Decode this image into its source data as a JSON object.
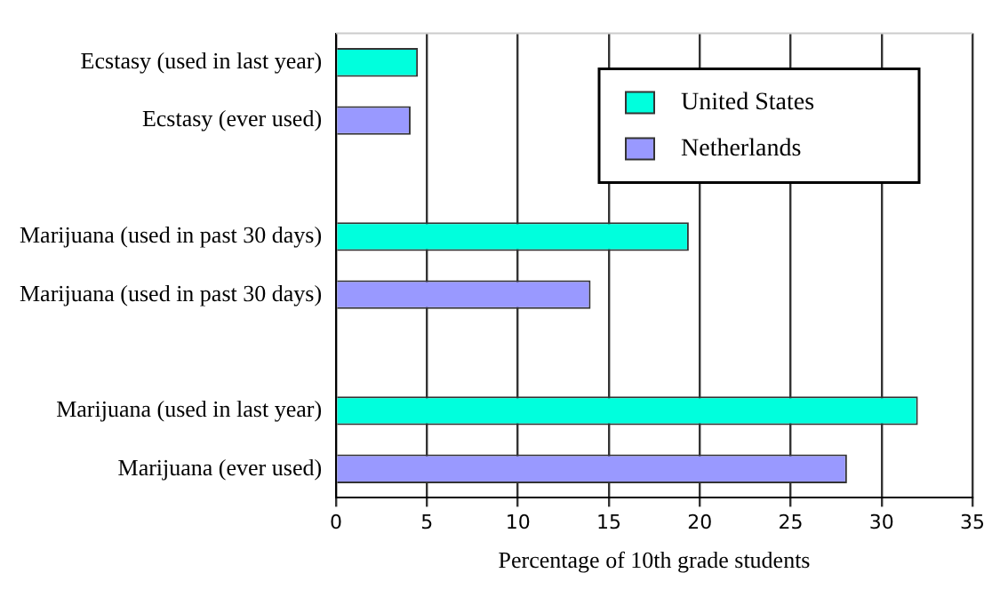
{
  "chart_data": {
    "type": "bar",
    "orientation": "horizontal",
    "xlabel": "Percentage of 10th grade students",
    "categories": [
      "Ecstasy (used in last year)",
      "Ecstasy (ever used)",
      null,
      "Marijuana (used in past 30 days)",
      "Marijuana (used in past 30 days)",
      null,
      "Marijuana (used in last year)",
      "Marijuana (ever used)"
    ],
    "series": [
      {
        "name": "United States",
        "color": "#00ffdd",
        "values": [
          4.5,
          null,
          null,
          19.4,
          null,
          null,
          32.0,
          null
        ]
      },
      {
        "name": "Netherlands",
        "color": "#9999ff",
        "values": [
          null,
          4.1,
          null,
          null,
          14.0,
          null,
          null,
          28.1
        ]
      }
    ],
    "xlim": [
      0,
      35
    ],
    "xticks": [
      0,
      5,
      10,
      15,
      20,
      25,
      30,
      35
    ],
    "grid": "x",
    "legend": "top right"
  }
}
